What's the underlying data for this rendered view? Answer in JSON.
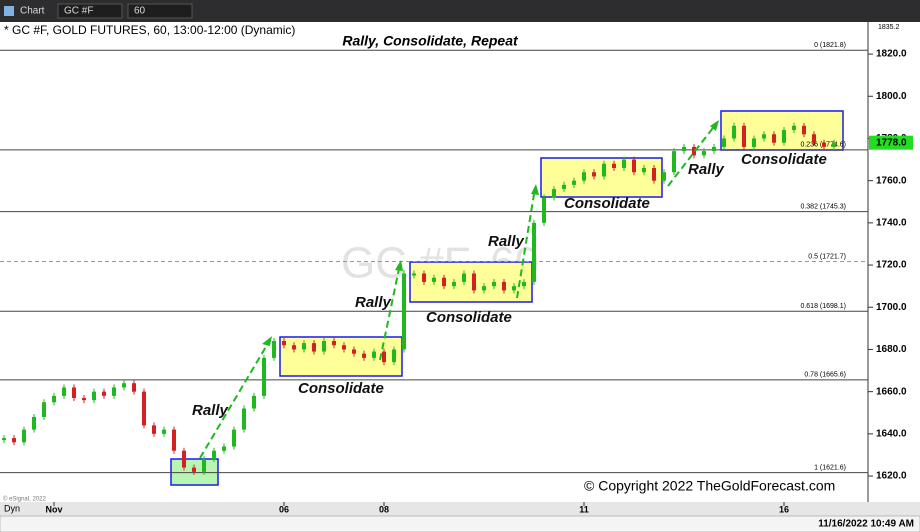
{
  "toolbar": {
    "app": "Chart",
    "symbol": "GC #F",
    "interval": "60"
  },
  "chart_data": {
    "type": "candlestick",
    "title": "Rally, Consolidate, Repeat",
    "subtitle": "* GC #F, GOLD FUTURES, 60, 13:00-12:00 (Dynamic)",
    "watermark": "GC #F, 60",
    "categories": [
      null,
      null,
      null,
      null,
      null,
      "Nov",
      null,
      null,
      null,
      null,
      null,
      null,
      null,
      null,
      null,
      null,
      null,
      null,
      null,
      null,
      null,
      null,
      null,
      null,
      null,
      null,
      null,
      null,
      "06",
      null,
      null,
      null,
      null,
      null,
      null,
      null,
      null,
      null,
      "08",
      null,
      null,
      null,
      null,
      null,
      null,
      null,
      null,
      null,
      null,
      null,
      null,
      null,
      null,
      null,
      null,
      null,
      null,
      null,
      "11",
      null,
      null,
      null,
      null,
      null,
      null,
      null,
      null,
      null,
      null,
      null,
      null,
      null,
      null,
      null,
      null,
      null,
      null,
      null,
      "16",
      null,
      null,
      null,
      null,
      null
    ],
    "values": [
      1638,
      1636,
      1642,
      1648,
      1655,
      1658,
      1662,
      1657,
      1656,
      1660,
      1658,
      1662,
      1664,
      1660,
      1644,
      1640,
      1642,
      1632,
      1624,
      1622,
      1628,
      1632,
      1634,
      1642,
      1652,
      1658,
      1676,
      1684,
      1682,
      1680,
      1683,
      1679,
      1684,
      1682,
      1680,
      1678,
      1676,
      1679,
      1674,
      1680,
      1716,
      1716,
      1712,
      1714,
      1710,
      1712,
      1716,
      1708,
      1710,
      1712,
      1708,
      1710,
      1712,
      1740,
      1752,
      1756,
      1758,
      1760,
      1764,
      1762,
      1768,
      1766,
      1770,
      1764,
      1766,
      1760,
      1764,
      1774,
      1776,
      1772,
      1774,
      1776,
      1780,
      1786,
      1776,
      1780,
      1782,
      1778,
      1784,
      1786,
      1782,
      1778,
      1776,
      1778
    ],
    "colors": {
      "up": "#1fb81f",
      "down": "#d42020"
    },
    "ylim": [
      1607.7,
      1835.2
    ],
    "yticks": [
      {
        "value": 1620,
        "label": "1620.0"
      },
      {
        "value": 1640,
        "label": "1640.0"
      },
      {
        "value": 1660,
        "label": "1660.0"
      },
      {
        "value": 1680,
        "label": "1680.0"
      },
      {
        "value": 1700,
        "label": "1700.0"
      },
      {
        "value": 1720,
        "label": "1720.0"
      },
      {
        "value": 1740,
        "label": "1740.0"
      },
      {
        "value": 1760,
        "label": "1760.0"
      },
      {
        "value": 1780,
        "label": "1780.0"
      },
      {
        "value": 1800,
        "label": "1800.0"
      },
      {
        "value": 1820,
        "label": "1820.0"
      }
    ],
    "grid": false,
    "fib_levels": [
      {
        "value": 1821.8,
        "label": "0 (1821.8)"
      },
      {
        "value": 1774.6,
        "label": "0.236 (1774.6)"
      },
      {
        "value": 1745.3,
        "label": "0.382 (1745.3)"
      },
      {
        "value": 1721.7,
        "label": "0.5 (1721.7)"
      },
      {
        "value": 1698.1,
        "label": "0.618 (1698.1)"
      },
      {
        "value": 1665.6,
        "label": "0.78 (1665.6)"
      },
      {
        "value": 1621.6,
        "label": "1 (1621.6)"
      }
    ],
    "last_price": {
      "value": 1778,
      "label": "1778.0"
    },
    "annotations": [
      "Rally",
      "Consolidate",
      "Rally",
      "Consolidate",
      "Rally",
      "Consolidate",
      "Rally",
      "Consolidate"
    ],
    "copyright": "© Copyright 2022 TheGoldForecast.com",
    "source": "© eSignal, 2022"
  },
  "statusbar": {
    "mode": "Dyn",
    "timestamp": "11/16/2022 10:49 AM"
  }
}
